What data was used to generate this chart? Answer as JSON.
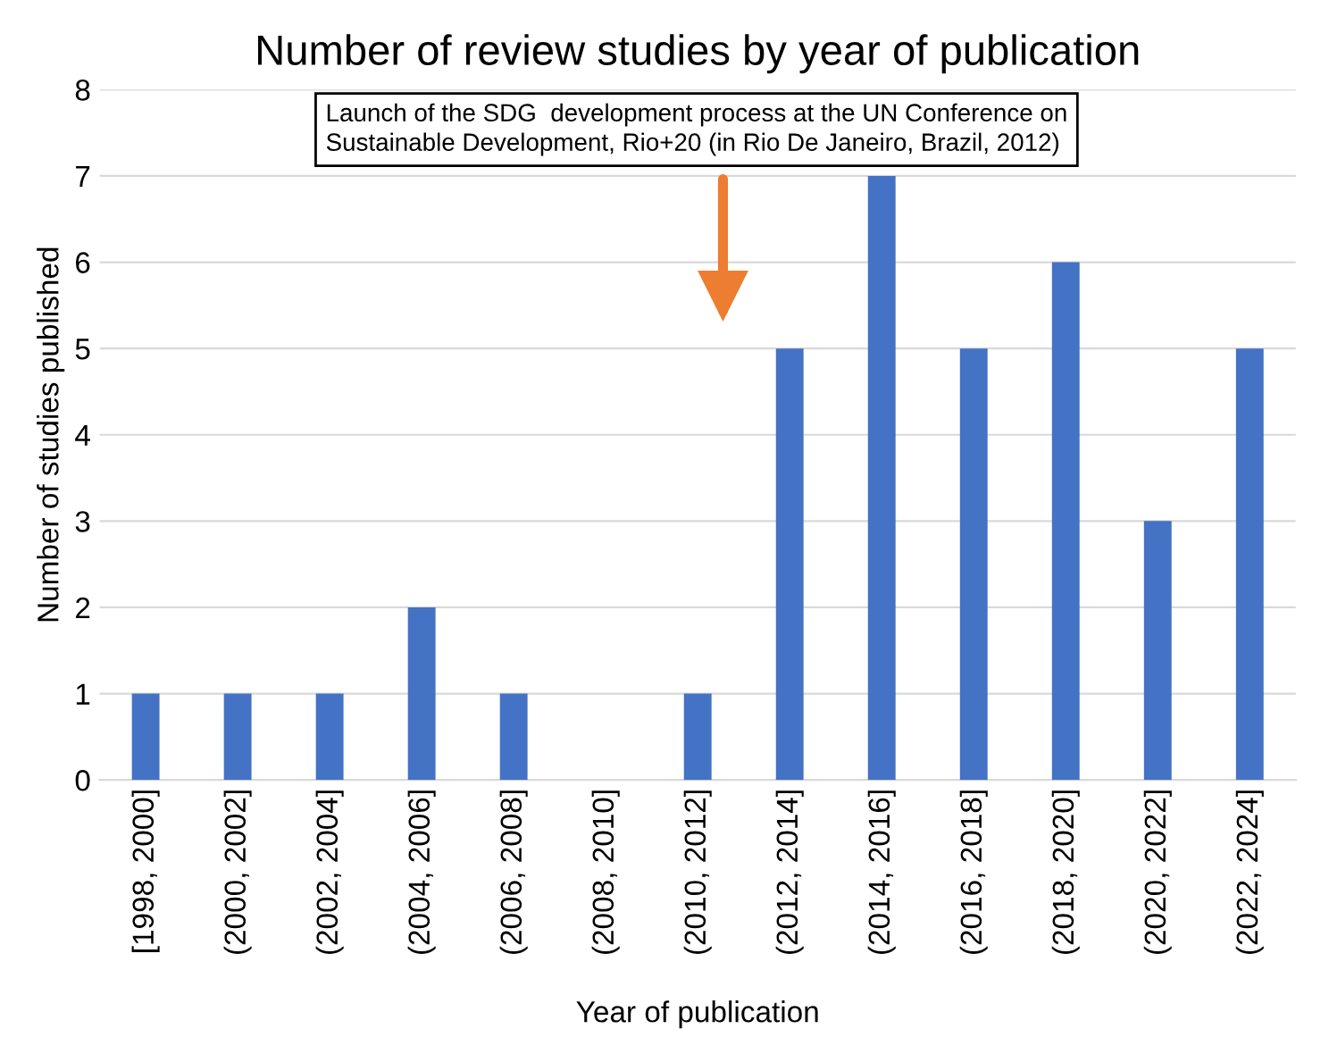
{
  "chart_data": {
    "type": "bar",
    "title": "Number of review studies by year of publication",
    "xlabel": "Year of publication",
    "ylabel": "Number of studies published",
    "categories": [
      "[1998, 2000]",
      "(2000, 2002]",
      "(2002, 2004]",
      "(2004, 2006]",
      "(2006, 2008]",
      "(2008, 2010]",
      "(2010, 2012]",
      "(2012, 2014]",
      "(2014, 2016]",
      "(2016, 2018]",
      "(2018, 2020]",
      "(2020, 2022]",
      "(2022, 2024]"
    ],
    "values": [
      1,
      1,
      1,
      2,
      1,
      0,
      1,
      5,
      7,
      5,
      6,
      3,
      5
    ],
    "color": "#4472c4",
    "ylim": [
      0,
      8
    ],
    "yticks": [
      0,
      1,
      2,
      3,
      4,
      5,
      6,
      7,
      8
    ],
    "grid": "y",
    "annotations": [
      "Launch of the SDG  development process at the UN Conference on\nSustainable Development, Rio+20 (in Rio De Janeiro, Brazil, 2012)"
    ]
  }
}
